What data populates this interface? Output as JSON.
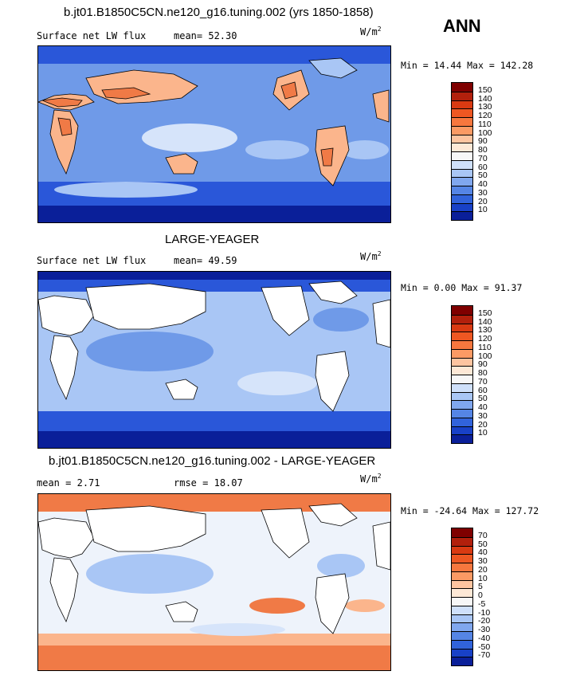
{
  "season": "ANN",
  "panels": [
    {
      "title": "b.jt01.B1850C5CN.ne120_g16.tuning.002 (yrs 1850-1858)",
      "variable": "Surface net LW flux",
      "stat1_label": "mean=",
      "stat1_value": "52.30",
      "units_base": "W/m",
      "units_exp": "2",
      "min_label": "Min =",
      "min_value": "14.44",
      "max_label": "Max =",
      "max_value": "142.28",
      "colorbar": {
        "labels": [
          "150",
          "140",
          "130",
          "120",
          "110",
          "100",
          "90",
          "80",
          "70",
          "60",
          "50",
          "40",
          "30",
          "20",
          "10"
        ],
        "colors": [
          "#7f0000",
          "#b2200c",
          "#d93a12",
          "#ee5722",
          "#f7773e",
          "#fb9a64",
          "#fdc4a0",
          "#fde8d6",
          "#f7f7f7",
          "#cfe0fa",
          "#a9c6f5",
          "#80a7ee",
          "#5585e5",
          "#3163db",
          "#1841c7",
          "#0a1f99"
        ]
      }
    },
    {
      "title": "LARGE-YEAGER",
      "variable": "Surface net LW flux",
      "stat1_label": "mean=",
      "stat1_value": "49.59",
      "units_base": "W/m",
      "units_exp": "2",
      "min_label": "Min =",
      "min_value": "0.00",
      "max_label": "Max =",
      "max_value": "91.37",
      "colorbar": {
        "labels": [
          "150",
          "140",
          "130",
          "120",
          "110",
          "100",
          "90",
          "80",
          "70",
          "60",
          "50",
          "40",
          "30",
          "20",
          "10"
        ],
        "colors": [
          "#7f0000",
          "#b2200c",
          "#d93a12",
          "#ee5722",
          "#f7773e",
          "#fb9a64",
          "#fdc4a0",
          "#fde8d6",
          "#f7f7f7",
          "#cfe0fa",
          "#a9c6f5",
          "#80a7ee",
          "#5585e5",
          "#3163db",
          "#1841c7",
          "#0a1f99"
        ]
      }
    },
    {
      "title": "b.jt01.B1850C5CN.ne120_g16.tuning.002 - LARGE-YEAGER",
      "stat1_label": "mean =",
      "stat1_value": "2.71",
      "stat2_label": "rmse =",
      "stat2_value": "18.07",
      "units_base": "W/m",
      "units_exp": "2",
      "min_label": "Min =",
      "min_value": "-24.64",
      "max_label": "Max =",
      "max_value": "127.72",
      "colorbar": {
        "labels": [
          "70",
          "50",
          "40",
          "30",
          "20",
          "10",
          "5",
          "0",
          "-5",
          "-10",
          "-20",
          "-30",
          "-40",
          "-50",
          "-70"
        ],
        "colors": [
          "#7f0000",
          "#b2200c",
          "#d93a12",
          "#ee5722",
          "#f7773e",
          "#fb9a64",
          "#fdc4a0",
          "#fde8d6",
          "#f7f7f7",
          "#cfe0fa",
          "#a9c6f5",
          "#80a7ee",
          "#5585e5",
          "#3163db",
          "#1841c7",
          "#0a1f99"
        ]
      }
    }
  ],
  "map_colors": {
    "ocean_deep": "#2a57d9",
    "ocean_mid": "#6f9ae8",
    "ocean_light": "#a9c6f5",
    "ocean_pale": "#d6e4fa",
    "warm_light": "#fbb58c",
    "warm_mid": "#f07a46",
    "warm_dark": "#c8321a",
    "polar_dark": "#0a1f99",
    "land_missing": "#ffffff",
    "diff_neutral": "#eef3fb"
  }
}
